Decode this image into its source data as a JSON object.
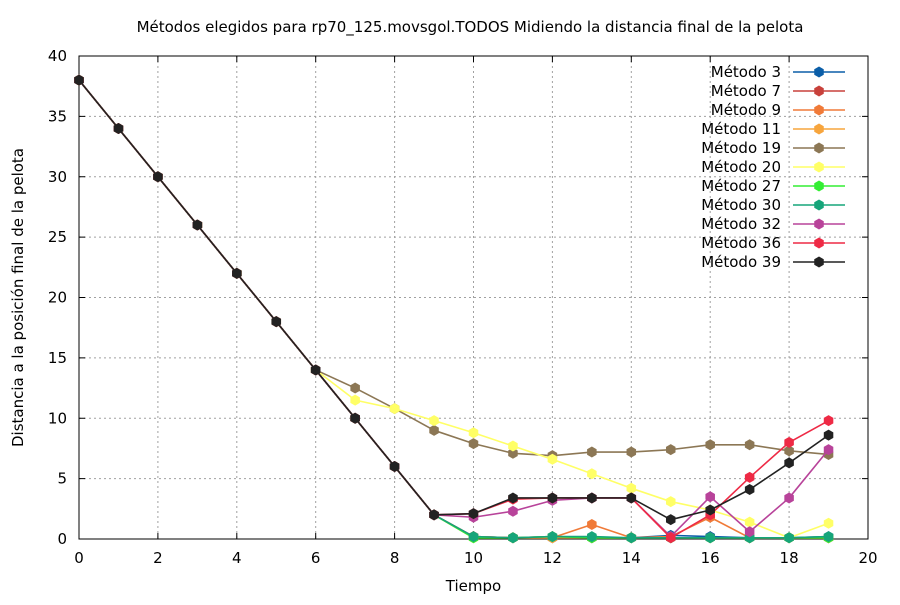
{
  "chart_data": {
    "type": "line",
    "title": "Métodos elegidos para rp70_125.movsgol.TODOS Midiendo la distancia final de la pelota",
    "xlabel": "Tiempo",
    "ylabel": "Distancia a la posición final de la pelota",
    "xlim": [
      0,
      20
    ],
    "ylim": [
      0,
      40
    ],
    "xticks": [
      "0",
      "2",
      "4",
      "6",
      "8",
      "10",
      "12",
      "14",
      "16",
      "18",
      "20"
    ],
    "yticks": [
      "0",
      "5",
      "10",
      "15",
      "20",
      "25",
      "30",
      "35",
      "40"
    ],
    "grid": true,
    "legend_position": "top-right",
    "x": [
      0,
      1,
      2,
      3,
      4,
      5,
      6,
      7,
      8,
      9,
      10,
      11,
      12,
      13,
      14,
      15,
      16,
      17,
      18,
      19
    ],
    "series": [
      {
        "name": "Método 3",
        "color": "#0b5ea8",
        "values": [
          38,
          34,
          30,
          26,
          22,
          18,
          14,
          10,
          6,
          2,
          0.2,
          0.1,
          0.1,
          0.1,
          0.1,
          0.3,
          0.2,
          0.1,
          0.1,
          0.2
        ]
      },
      {
        "name": "Método 7",
        "color": "#c8413b",
        "values": [
          38,
          34,
          30,
          26,
          22,
          18,
          14,
          10,
          6,
          2,
          0.2,
          0.1,
          0.2,
          0.1,
          0.1,
          0.1,
          0.1,
          0.1,
          0.1,
          0.1
        ]
      },
      {
        "name": "Método 9",
        "color": "#f07a38",
        "values": [
          38,
          34,
          30,
          26,
          22,
          18,
          14,
          10,
          6,
          2,
          0.2,
          0.1,
          0.1,
          1.2,
          0.1,
          0.2,
          1.8,
          0.1,
          0.1,
          0.1
        ]
      },
      {
        "name": "Método 11",
        "color": "#f7a53d",
        "values": [
          38,
          34,
          30,
          26,
          22,
          18,
          14,
          10,
          6,
          2,
          0.1,
          0.1,
          0.1,
          0.1,
          0.1,
          0.1,
          0.1,
          0.1,
          0.1,
          0.1
        ]
      },
      {
        "name": "Método 19",
        "color": "#8c7755",
        "values": [
          38,
          34,
          30,
          26,
          22,
          18,
          14,
          12.5,
          10.8,
          9.0,
          7.9,
          7.1,
          6.9,
          7.2,
          7.2,
          7.4,
          7.8,
          7.8,
          7.3,
          7.0
        ]
      },
      {
        "name": "Método 20",
        "color": "#ffff66",
        "values": [
          38,
          34,
          30,
          26,
          22,
          18,
          14,
          11.5,
          10.8,
          9.8,
          8.8,
          7.7,
          6.6,
          5.4,
          4.2,
          3.1,
          2.4,
          1.4,
          0.1,
          1.3
        ]
      },
      {
        "name": "Método 27",
        "color": "#33ee33",
        "values": [
          38,
          34,
          30,
          26,
          22,
          18,
          14,
          10,
          6,
          2,
          0.1,
          0.1,
          0.2,
          0.1,
          0.1,
          0.1,
          0.1,
          0.1,
          0.1,
          0.1
        ]
      },
      {
        "name": "Método 30",
        "color": "#16a57a",
        "values": [
          38,
          34,
          30,
          26,
          22,
          18,
          14,
          10,
          6,
          2,
          0.2,
          0.1,
          0.2,
          0.2,
          0.1,
          0.1,
          0.1,
          0.1,
          0.1,
          0.2
        ]
      },
      {
        "name": "Método 32",
        "color": "#b8439a",
        "values": [
          38,
          34,
          30,
          26,
          22,
          18,
          14,
          10,
          6,
          2,
          1.8,
          2.3,
          3.2,
          3.4,
          3.4,
          0.2,
          3.5,
          0.6,
          3.4,
          7.4
        ]
      },
      {
        "name": "Método 36",
        "color": "#ee2a45",
        "values": [
          38,
          34,
          30,
          26,
          22,
          18,
          14,
          10,
          6,
          2,
          2.1,
          3.3,
          3.4,
          3.4,
          3.4,
          0.1,
          2.0,
          5.1,
          8.0,
          9.8
        ]
      },
      {
        "name": "Método 39",
        "color": "#222222",
        "values": [
          38,
          34,
          30,
          26,
          22,
          18,
          14,
          10,
          6,
          2,
          2.1,
          3.4,
          3.4,
          3.4,
          3.4,
          1.6,
          2.4,
          4.1,
          6.3,
          8.6
        ]
      }
    ]
  }
}
